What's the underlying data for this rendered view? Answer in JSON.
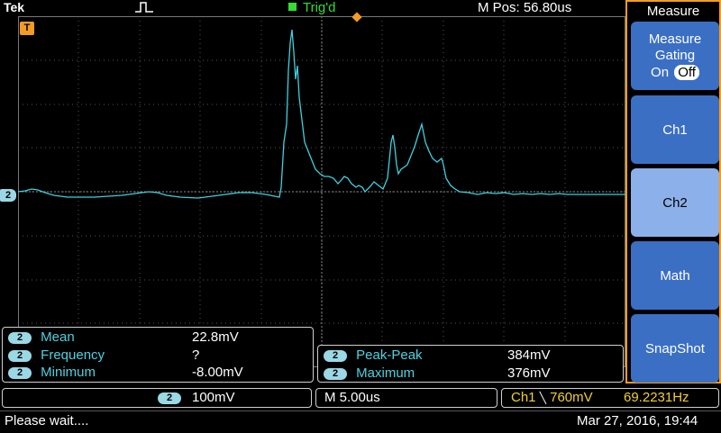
{
  "header": {
    "brand": "Tek",
    "trigger_status": "Trig'd",
    "m_pos_label": "M Pos: 56.80us"
  },
  "markers": {
    "ch2": "2",
    "trigger": "T"
  },
  "menu": {
    "title": "Measure",
    "gating_label": "Measure Gating",
    "gating_on": "On",
    "gating_off": "Off",
    "items": [
      "Ch1",
      "Ch2",
      "Math",
      "SnapShot"
    ]
  },
  "measurements_left": [
    {
      "ch": "2",
      "name": "Mean",
      "value": "22.8mV"
    },
    {
      "ch": "2",
      "name": "Frequency",
      "value": "?"
    },
    {
      "ch": "2",
      "name": "Minimum",
      "value": "-8.00mV"
    }
  ],
  "measurements_right": [
    {
      "ch": "2",
      "name": "Peak-Peak",
      "value": "384mV"
    },
    {
      "ch": "2",
      "name": "Maximum",
      "value": "376mV"
    }
  ],
  "settings": {
    "ch": "2",
    "volts_div": "100mV",
    "timebase": "M 5.00us",
    "trigger_ch": "Ch1",
    "trigger_slope": "╲",
    "trigger_level": "760mV",
    "trigger_freq": "69.2231Hz"
  },
  "status": {
    "message": "Please wait....",
    "datetime": "Mar 27, 2016, 19:44"
  },
  "colors": {
    "trace": "#3fd0de",
    "accent": "#f39c24",
    "menu_button": "#3b6fc4"
  }
}
